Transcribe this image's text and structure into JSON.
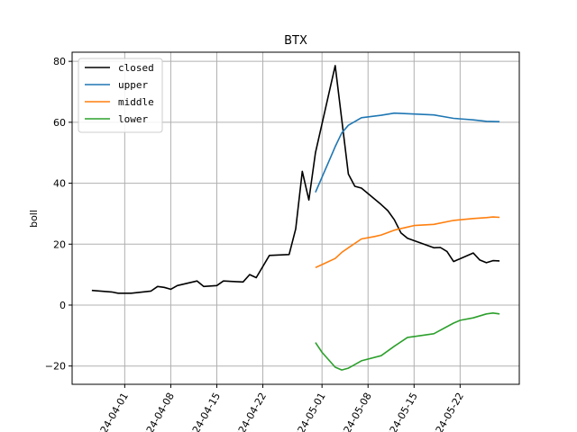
{
  "chart_data": {
    "type": "line",
    "title": "BTX",
    "xlabel": "",
    "ylabel": "boll",
    "xlim": [
      "2024-03-24",
      "2024-05-31"
    ],
    "ylim": [
      -26,
      83
    ],
    "grid": true,
    "legend_position": "top-left",
    "x_ticks": [
      "2024-04-01",
      "2024-04-08",
      "2024-04-15",
      "2024-04-22",
      "2024-05-01",
      "2024-05-08",
      "2024-05-15",
      "2024-05-22"
    ],
    "x_tick_labels": [
      "2024-04-01",
      "2024-04-08",
      "2024-04-15",
      "2024-04-22",
      "2024-05-01",
      "2024-05-08",
      "2024-05-15",
      "2024-05-22"
    ],
    "y_ticks": [
      -20,
      0,
      20,
      40,
      60,
      80
    ],
    "series": [
      {
        "name": "closed",
        "color": "#000000",
        "points": [
          [
            "2024-03-27",
            4.8
          ],
          [
            "2024-03-30",
            4.3
          ],
          [
            "2024-03-31",
            3.9
          ],
          [
            "2024-04-02",
            3.9
          ],
          [
            "2024-04-05",
            4.6
          ],
          [
            "2024-04-06",
            6.1
          ],
          [
            "2024-04-07",
            5.8
          ],
          [
            "2024-04-08",
            5.2
          ],
          [
            "2024-04-09",
            6.4
          ],
          [
            "2024-04-12",
            7.9
          ],
          [
            "2024-04-13",
            6.1
          ],
          [
            "2024-04-15",
            6.4
          ],
          [
            "2024-04-16",
            7.9
          ],
          [
            "2024-04-19",
            7.6
          ],
          [
            "2024-04-20",
            10.0
          ],
          [
            "2024-04-21",
            9.0
          ],
          [
            "2024-04-23",
            16.3
          ],
          [
            "2024-04-26",
            16.6
          ],
          [
            "2024-04-27",
            25.0
          ],
          [
            "2024-04-28",
            43.9
          ],
          [
            "2024-04-29",
            34.5
          ],
          [
            "2024-04-30",
            50.0
          ],
          [
            "2024-05-03",
            78.6
          ],
          [
            "2024-05-05",
            43.0
          ],
          [
            "2024-05-06",
            39.0
          ],
          [
            "2024-05-07",
            38.4
          ],
          [
            "2024-05-10",
            33.0
          ],
          [
            "2024-05-11",
            31.0
          ],
          [
            "2024-05-12",
            28.0
          ],
          [
            "2024-05-13",
            23.7
          ],
          [
            "2024-05-14",
            21.9
          ],
          [
            "2024-05-18",
            18.8
          ],
          [
            "2024-05-19",
            18.9
          ],
          [
            "2024-05-20",
            17.6
          ],
          [
            "2024-05-21",
            14.3
          ],
          [
            "2024-05-24",
            17.1
          ],
          [
            "2024-05-25",
            14.8
          ],
          [
            "2024-05-26",
            13.9
          ],
          [
            "2024-05-27",
            14.6
          ],
          [
            "2024-05-28",
            14.5
          ]
        ]
      },
      {
        "name": "upper",
        "color": "#1f77b4",
        "points": [
          [
            "2024-04-30",
            37.0
          ],
          [
            "2024-05-01",
            42.0
          ],
          [
            "2024-05-02",
            47.0
          ],
          [
            "2024-05-03",
            52.0
          ],
          [
            "2024-05-04",
            56.5
          ],
          [
            "2024-05-05",
            59.0
          ],
          [
            "2024-05-07",
            61.5
          ],
          [
            "2024-05-10",
            62.3
          ],
          [
            "2024-05-12",
            63.0
          ],
          [
            "2024-05-15",
            62.7
          ],
          [
            "2024-05-18",
            62.4
          ],
          [
            "2024-05-21",
            61.3
          ],
          [
            "2024-05-24",
            60.8
          ],
          [
            "2024-05-26",
            60.3
          ],
          [
            "2024-05-28",
            60.2
          ]
        ]
      },
      {
        "name": "middle",
        "color": "#ff7f0e",
        "points": [
          [
            "2024-04-30",
            12.3
          ],
          [
            "2024-05-01",
            13.3
          ],
          [
            "2024-05-03",
            15.3
          ],
          [
            "2024-05-04",
            17.3
          ],
          [
            "2024-05-05",
            18.8
          ],
          [
            "2024-05-07",
            21.7
          ],
          [
            "2024-05-09",
            22.5
          ],
          [
            "2024-05-10",
            23.0
          ],
          [
            "2024-05-12",
            24.6
          ],
          [
            "2024-05-14",
            25.6
          ],
          [
            "2024-05-15",
            26.1
          ],
          [
            "2024-05-18",
            26.5
          ],
          [
            "2024-05-21",
            27.8
          ],
          [
            "2024-05-24",
            28.4
          ],
          [
            "2024-05-26",
            28.7
          ],
          [
            "2024-05-27",
            28.9
          ],
          [
            "2024-05-28",
            28.8
          ]
        ]
      },
      {
        "name": "lower",
        "color": "#2ca02c",
        "points": [
          [
            "2024-04-30",
            -12.3
          ],
          [
            "2024-05-01",
            -15.5
          ],
          [
            "2024-05-03",
            -20.4
          ],
          [
            "2024-05-04",
            -21.3
          ],
          [
            "2024-05-05",
            -20.7
          ],
          [
            "2024-05-07",
            -18.3
          ],
          [
            "2024-05-10",
            -16.6
          ],
          [
            "2024-05-12",
            -13.5
          ],
          [
            "2024-05-14",
            -10.6
          ],
          [
            "2024-05-15",
            -10.3
          ],
          [
            "2024-05-18",
            -9.4
          ],
          [
            "2024-05-21",
            -5.9
          ],
          [
            "2024-05-22",
            -5.0
          ],
          [
            "2024-05-24",
            -4.2
          ],
          [
            "2024-05-26",
            -2.9
          ],
          [
            "2024-05-27",
            -2.6
          ],
          [
            "2024-05-28",
            -2.9
          ]
        ]
      }
    ]
  }
}
